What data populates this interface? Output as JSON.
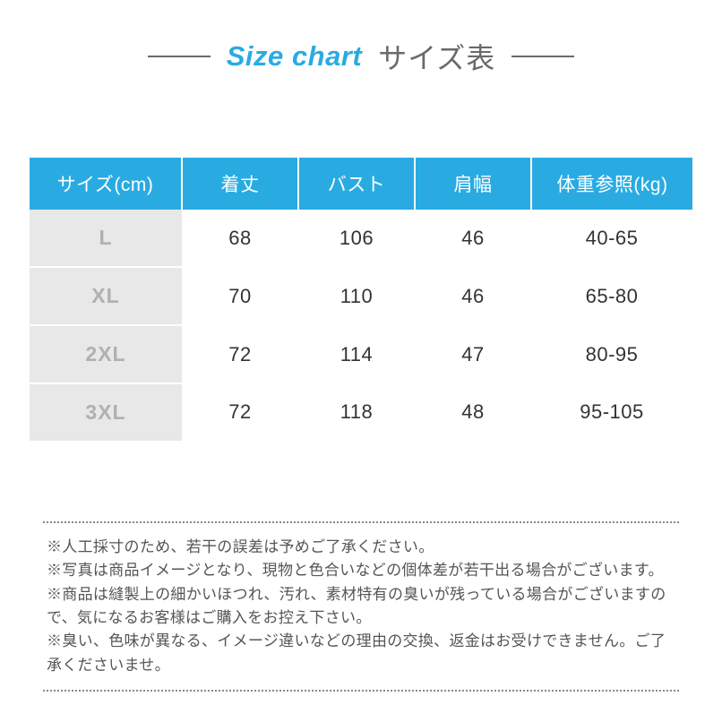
{
  "title": {
    "en": "Size chart",
    "jp": "サイズ表",
    "en_color": "#29abe2",
    "jp_color": "#6a6a6a",
    "line_color": "#6a6a6a"
  },
  "table": {
    "header_bg": "#29abe2",
    "header_fg": "#ffffff",
    "size_col_bg": "#e8e8e8",
    "size_col_fg": "#b0b0b0",
    "body_fg": "#333333",
    "columns": [
      "サイズ(cm)",
      "着丈",
      "バスト",
      "肩幅",
      "体重参照(kg)"
    ],
    "rows": [
      [
        "L",
        "68",
        "106",
        "46",
        "40-65"
      ],
      [
        "XL",
        "70",
        "110",
        "46",
        "65-80"
      ],
      [
        "2XL",
        "72",
        "114",
        "47",
        "80-95"
      ],
      [
        "3XL",
        "72",
        "118",
        "48",
        "95-105"
      ]
    ]
  },
  "notes": {
    "lines": [
      "※人工採寸のため、若干の誤差は予めご了承ください。",
      "※写真は商品イメージとなり、現物と色合いなどの個体差が若干出る場合がございます。",
      "※商品は縫製上の細かいほつれ、汚れ、素材特有の臭いが残っている場合がございますので、気になるお客様はご購入をお控え下さい。",
      "※臭い、色味が異なる、イメージ違いなどの理由の交換、返金はお受けできません。ご了承くださいませ。"
    ],
    "text_color": "#555555",
    "border_color": "#888888"
  }
}
